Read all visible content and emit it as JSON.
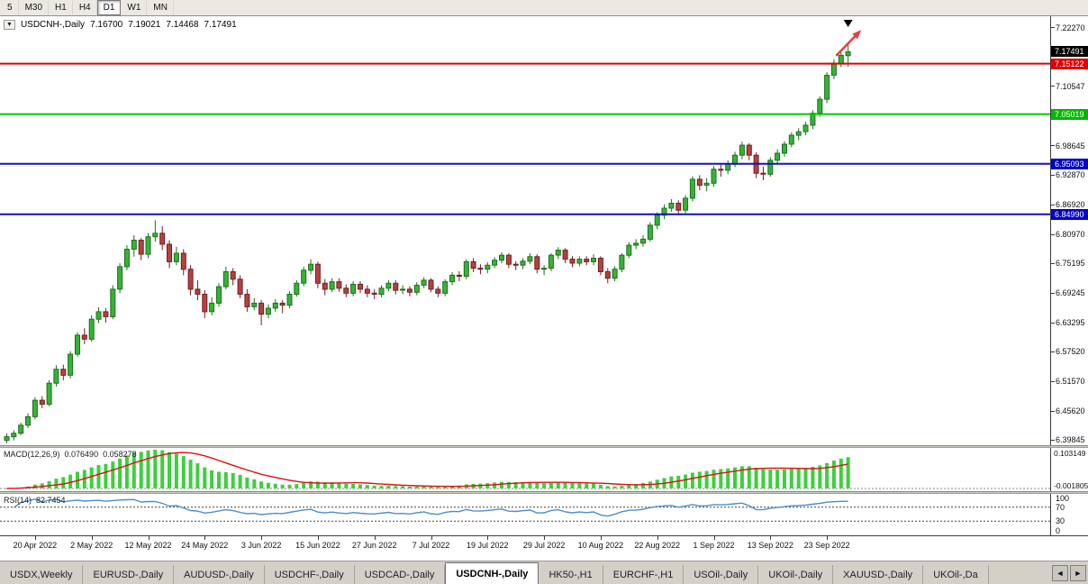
{
  "icons": {
    "chart_menu": "▼",
    "tab_scroll_left": "◄",
    "tab_scroll_right": "►"
  },
  "colors": {
    "bull": "#35b435",
    "bull_border": "#1d6f1d",
    "bear": "#b84040",
    "bear_border": "#6f2020",
    "macd_hist": "#3ecf3e",
    "macd_signal": "#dd1111",
    "rsi_line": "#4d8fcc",
    "zero_line": "#888888",
    "level_dash": "#444444",
    "current_price_bg": "#000000"
  },
  "toolbar": {
    "timeframes": [
      {
        "label": "5",
        "active": false
      },
      {
        "label": "M30",
        "active": false
      },
      {
        "label": "H1",
        "active": false
      },
      {
        "label": "H4",
        "active": false
      },
      {
        "label": "D1",
        "active": true
      },
      {
        "label": "W1",
        "active": false
      },
      {
        "label": "MN",
        "active": false
      }
    ]
  },
  "chart_header": {
    "symbol": "USDCNH-,Daily",
    "open": "7.16700",
    "high": "7.19021",
    "low": "7.14468",
    "close": "7.17491"
  },
  "price_axis": {
    "ticks": [
      "7.22270",
      "7.10547",
      "6.98645",
      "6.92870",
      "6.86920",
      "6.80970",
      "6.75195",
      "6.69245",
      "6.63295",
      "6.57520",
      "6.51570",
      "6.45620",
      "6.39845"
    ],
    "markers": [
      {
        "text": "7.17491",
        "price": 7.17491,
        "bg": "#000000",
        "fg": "#ffffff"
      },
      {
        "text": "7.15122",
        "price": 7.15122,
        "bg": "#e00000",
        "fg": "#ffffff"
      },
      {
        "text": "7.05019",
        "price": 7.05019,
        "bg": "#00b800",
        "fg": "#ffffff"
      },
      {
        "text": "6.95093",
        "price": 6.95093,
        "bg": "#0000c8",
        "fg": "#ffffff"
      },
      {
        "text": "6.84990",
        "price": 6.8499,
        "bg": "#0000c8",
        "fg": "#ffffff"
      }
    ]
  },
  "indicators": {
    "macd": {
      "label": "MACD(12,26,9)",
      "value_main": "0.076490",
      "value_signal": "0.058278",
      "axis_max": "0.103149",
      "axis_min": "-0.001805"
    },
    "rsi": {
      "label": "RSI(14)",
      "value": "82.7454",
      "axis_labels": [
        {
          "text": "100",
          "value": 100
        },
        {
          "text": "70",
          "value": 70
        },
        {
          "text": "30",
          "value": 30
        },
        {
          "text": "0",
          "value": 0
        }
      ],
      "dashed_levels": [
        70,
        30
      ]
    }
  },
  "tabs": [
    {
      "label": "USDX,Weekly",
      "active": false
    },
    {
      "label": "EURUSD-,Daily",
      "active": false
    },
    {
      "label": "AUDUSD-,Daily",
      "active": false
    },
    {
      "label": "USDCHF-,Daily",
      "active": false
    },
    {
      "label": "USDCAD-,Daily",
      "active": false
    },
    {
      "label": "USDCNH-,Daily",
      "active": true
    },
    {
      "label": "HK50-,H1",
      "active": false
    },
    {
      "label": "EURCHF-,H1",
      "active": false
    },
    {
      "label": "USOil-,Daily",
      "active": false
    },
    {
      "label": "UKOil-,Daily",
      "active": false
    },
    {
      "label": "XAUUSD-,Daily",
      "active": false
    },
    {
      "label": "UKOil-,Da",
      "active": false
    }
  ],
  "chart_data": {
    "type": "candlestick",
    "title": "USDCNH-,Daily",
    "y_range": {
      "min": 6.388,
      "max": 7.246
    },
    "levels": [
      {
        "price": 7.15122,
        "color": "#e00000"
      },
      {
        "price": 7.05019,
        "color": "#00cc00"
      },
      {
        "price": 6.95093,
        "color": "#1010c8"
      },
      {
        "price": 6.8499,
        "color": "#1010c8"
      }
    ],
    "date_labels": [
      {
        "label": "20 Apr 2022",
        "index": 4
      },
      {
        "label": "2 May 2022",
        "index": 12
      },
      {
        "label": "12 May 2022",
        "index": 20
      },
      {
        "label": "24 May 2022",
        "index": 28
      },
      {
        "label": "3 Jun 2022",
        "index": 36
      },
      {
        "label": "15 Jun 2022",
        "index": 44
      },
      {
        "label": "27 Jun 2022",
        "index": 52
      },
      {
        "label": "7 Jul 2022",
        "index": 60
      },
      {
        "label": "19 Jul 2022",
        "index": 68
      },
      {
        "label": "29 Jul 2022",
        "index": 76
      },
      {
        "label": "10 Aug 2022",
        "index": 84
      },
      {
        "label": "22 Aug 2022",
        "index": 92
      },
      {
        "label": "1 Sep 2022",
        "index": 100
      },
      {
        "label": "13 Sep 2022",
        "index": 108
      },
      {
        "label": "23 Sep 2022",
        "index": 116
      }
    ],
    "annotations": [
      {
        "type": "arrow",
        "from": {
          "index": 117.3,
          "price": 7.167
        },
        "to": {
          "index": 120.4,
          "price": 7.212
        },
        "color": "#ee3b3b"
      },
      {
        "type": "triangle-down",
        "index": 119,
        "color": "#000000"
      }
    ],
    "candles": [
      [
        6.398,
        6.412,
        6.392,
        6.405
      ],
      [
        6.405,
        6.418,
        6.398,
        6.412
      ],
      [
        6.412,
        6.433,
        6.408,
        6.428
      ],
      [
        6.428,
        6.452,
        6.422,
        6.445
      ],
      [
        6.445,
        6.484,
        6.44,
        6.478
      ],
      [
        6.478,
        6.486,
        6.462,
        6.47
      ],
      [
        6.47,
        6.518,
        6.466,
        6.512
      ],
      [
        6.512,
        6.548,
        6.505,
        6.54
      ],
      [
        6.54,
        6.549,
        6.518,
        6.528
      ],
      [
        6.528,
        6.576,
        6.522,
        6.57
      ],
      [
        6.57,
        6.614,
        6.565,
        6.608
      ],
      [
        6.608,
        6.622,
        6.59,
        6.6
      ],
      [
        6.6,
        6.648,
        6.595,
        6.64
      ],
      [
        6.64,
        6.664,
        6.632,
        6.655
      ],
      [
        6.655,
        6.662,
        6.633,
        6.645
      ],
      [
        6.645,
        6.708,
        6.64,
        6.7
      ],
      [
        6.7,
        6.752,
        6.692,
        6.745
      ],
      [
        6.745,
        6.788,
        6.738,
        6.78
      ],
      [
        6.78,
        6.808,
        6.765,
        6.798
      ],
      [
        6.798,
        6.802,
        6.758,
        6.77
      ],
      [
        6.77,
        6.812,
        6.762,
        6.805
      ],
      [
        6.805,
        6.838,
        6.795,
        6.812
      ],
      [
        6.812,
        6.826,
        6.778,
        6.79
      ],
      [
        6.79,
        6.798,
        6.742,
        6.755
      ],
      [
        6.755,
        6.785,
        6.748,
        6.772
      ],
      [
        6.772,
        6.78,
        6.728,
        6.74
      ],
      [
        6.74,
        6.748,
        6.688,
        6.7
      ],
      [
        6.7,
        6.718,
        6.678,
        6.69
      ],
      [
        6.69,
        6.698,
        6.642,
        6.655
      ],
      [
        6.655,
        6.684,
        6.648,
        6.672
      ],
      [
        6.672,
        6.712,
        6.665,
        6.705
      ],
      [
        6.705,
        6.745,
        6.7,
        6.735
      ],
      [
        6.735,
        6.742,
        6.708,
        6.72
      ],
      [
        6.72,
        6.728,
        6.682,
        6.69
      ],
      [
        6.69,
        6.7,
        6.655,
        6.665
      ],
      [
        6.665,
        6.682,
        6.658,
        6.672
      ],
      [
        6.672,
        6.678,
        6.628,
        6.65
      ],
      [
        6.65,
        6.67,
        6.642,
        6.662
      ],
      [
        6.662,
        6.68,
        6.655,
        6.672
      ],
      [
        6.672,
        6.678,
        6.652,
        6.668
      ],
      [
        6.668,
        6.696,
        6.662,
        6.69
      ],
      [
        6.69,
        6.718,
        6.685,
        6.712
      ],
      [
        6.712,
        6.745,
        6.706,
        6.738
      ],
      [
        6.738,
        6.76,
        6.73,
        6.75
      ],
      [
        6.75,
        6.755,
        6.702,
        6.712
      ],
      [
        6.712,
        6.72,
        6.688,
        6.7
      ],
      [
        6.7,
        6.722,
        6.694,
        6.715
      ],
      [
        6.715,
        6.722,
        6.695,
        6.702
      ],
      [
        6.702,
        6.71,
        6.684,
        6.692
      ],
      [
        6.692,
        6.716,
        6.686,
        6.71
      ],
      [
        6.71,
        6.716,
        6.692,
        6.7
      ],
      [
        6.7,
        6.708,
        6.684,
        6.692
      ],
      [
        6.692,
        6.7,
        6.68,
        6.69
      ],
      [
        6.69,
        6.708,
        6.684,
        6.702
      ],
      [
        6.702,
        6.718,
        6.696,
        6.712
      ],
      [
        6.712,
        6.718,
        6.69,
        6.698
      ],
      [
        6.698,
        6.708,
        6.69,
        6.7
      ],
      [
        6.7,
        6.706,
        6.686,
        6.694
      ],
      [
        6.694,
        6.714,
        6.688,
        6.708
      ],
      [
        6.708,
        6.724,
        6.702,
        6.718
      ],
      [
        6.718,
        6.722,
        6.694,
        6.7
      ],
      [
        6.7,
        6.706,
        6.684,
        6.692
      ],
      [
        6.692,
        6.72,
        6.686,
        6.715
      ],
      [
        6.715,
        6.734,
        6.708,
        6.728
      ],
      [
        6.728,
        6.736,
        6.716,
        6.726
      ],
      [
        6.726,
        6.76,
        6.72,
        6.755
      ],
      [
        6.755,
        6.762,
        6.734,
        6.742
      ],
      [
        6.742,
        6.75,
        6.73,
        6.74
      ],
      [
        6.74,
        6.754,
        6.732,
        6.748
      ],
      [
        6.748,
        6.764,
        6.742,
        6.758
      ],
      [
        6.758,
        6.774,
        6.752,
        6.768
      ],
      [
        6.768,
        6.772,
        6.742,
        6.75
      ],
      [
        6.75,
        6.756,
        6.738,
        6.748
      ],
      [
        6.748,
        6.762,
        6.74,
        6.756
      ],
      [
        6.756,
        6.772,
        6.75,
        6.765
      ],
      [
        6.765,
        6.77,
        6.732,
        6.74
      ],
      [
        6.74,
        6.748,
        6.728,
        6.742
      ],
      [
        6.742,
        6.772,
        6.736,
        6.768
      ],
      [
        6.768,
        6.784,
        6.76,
        6.778
      ],
      [
        6.778,
        6.782,
        6.752,
        6.76
      ],
      [
        6.76,
        6.766,
        6.744,
        6.752
      ],
      [
        6.752,
        6.766,
        6.746,
        6.76
      ],
      [
        6.76,
        6.766,
        6.748,
        6.755
      ],
      [
        6.755,
        6.77,
        6.748,
        6.762
      ],
      [
        6.762,
        6.766,
        6.728,
        6.735
      ],
      [
        6.735,
        6.742,
        6.712,
        6.722
      ],
      [
        6.722,
        6.746,
        6.716,
        6.74
      ],
      [
        6.74,
        6.772,
        6.734,
        6.768
      ],
      [
        6.768,
        6.794,
        6.762,
        6.788
      ],
      [
        6.788,
        6.8,
        6.78,
        6.792
      ],
      [
        6.792,
        6.808,
        6.785,
        6.8
      ],
      [
        6.8,
        6.834,
        6.795,
        6.828
      ],
      [
        6.828,
        6.854,
        6.82,
        6.848
      ],
      [
        6.848,
        6.87,
        6.84,
        6.862
      ],
      [
        6.862,
        6.88,
        6.855,
        6.872
      ],
      [
        6.872,
        6.878,
        6.848,
        6.858
      ],
      [
        6.858,
        6.888,
        6.852,
        6.882
      ],
      [
        6.882,
        6.926,
        6.876,
        6.92
      ],
      [
        6.92,
        6.928,
        6.898,
        6.908
      ],
      [
        6.908,
        6.922,
        6.896,
        6.912
      ],
      [
        6.912,
        6.946,
        6.905,
        6.94
      ],
      [
        6.94,
        6.95,
        6.925,
        6.938
      ],
      [
        6.938,
        6.958,
        6.93,
        6.95
      ],
      [
        6.95,
        6.975,
        6.944,
        6.968
      ],
      [
        6.968,
        6.995,
        6.96,
        6.988
      ],
      [
        6.988,
        6.992,
        6.958,
        6.968
      ],
      [
        6.968,
        6.974,
        6.922,
        6.932
      ],
      [
        6.932,
        6.945,
        6.918,
        6.93
      ],
      [
        6.93,
        6.964,
        6.925,
        6.958
      ],
      [
        6.958,
        6.98,
        6.95,
        6.972
      ],
      [
        6.972,
        6.996,
        6.965,
        6.99
      ],
      [
        6.99,
        7.014,
        6.984,
        7.008
      ],
      [
        7.008,
        7.022,
        6.998,
        7.015
      ],
      [
        7.015,
        7.035,
        7.008,
        7.028
      ],
      [
        7.028,
        7.058,
        7.02,
        7.052
      ],
      [
        7.052,
        7.086,
        7.045,
        7.08
      ],
      [
        7.08,
        7.134,
        7.072,
        7.128
      ],
      [
        7.128,
        7.16,
        7.12,
        7.152
      ],
      [
        7.152,
        7.178,
        7.144,
        7.168
      ],
      [
        7.167,
        7.19021,
        7.14468,
        7.17491
      ]
    ]
  }
}
